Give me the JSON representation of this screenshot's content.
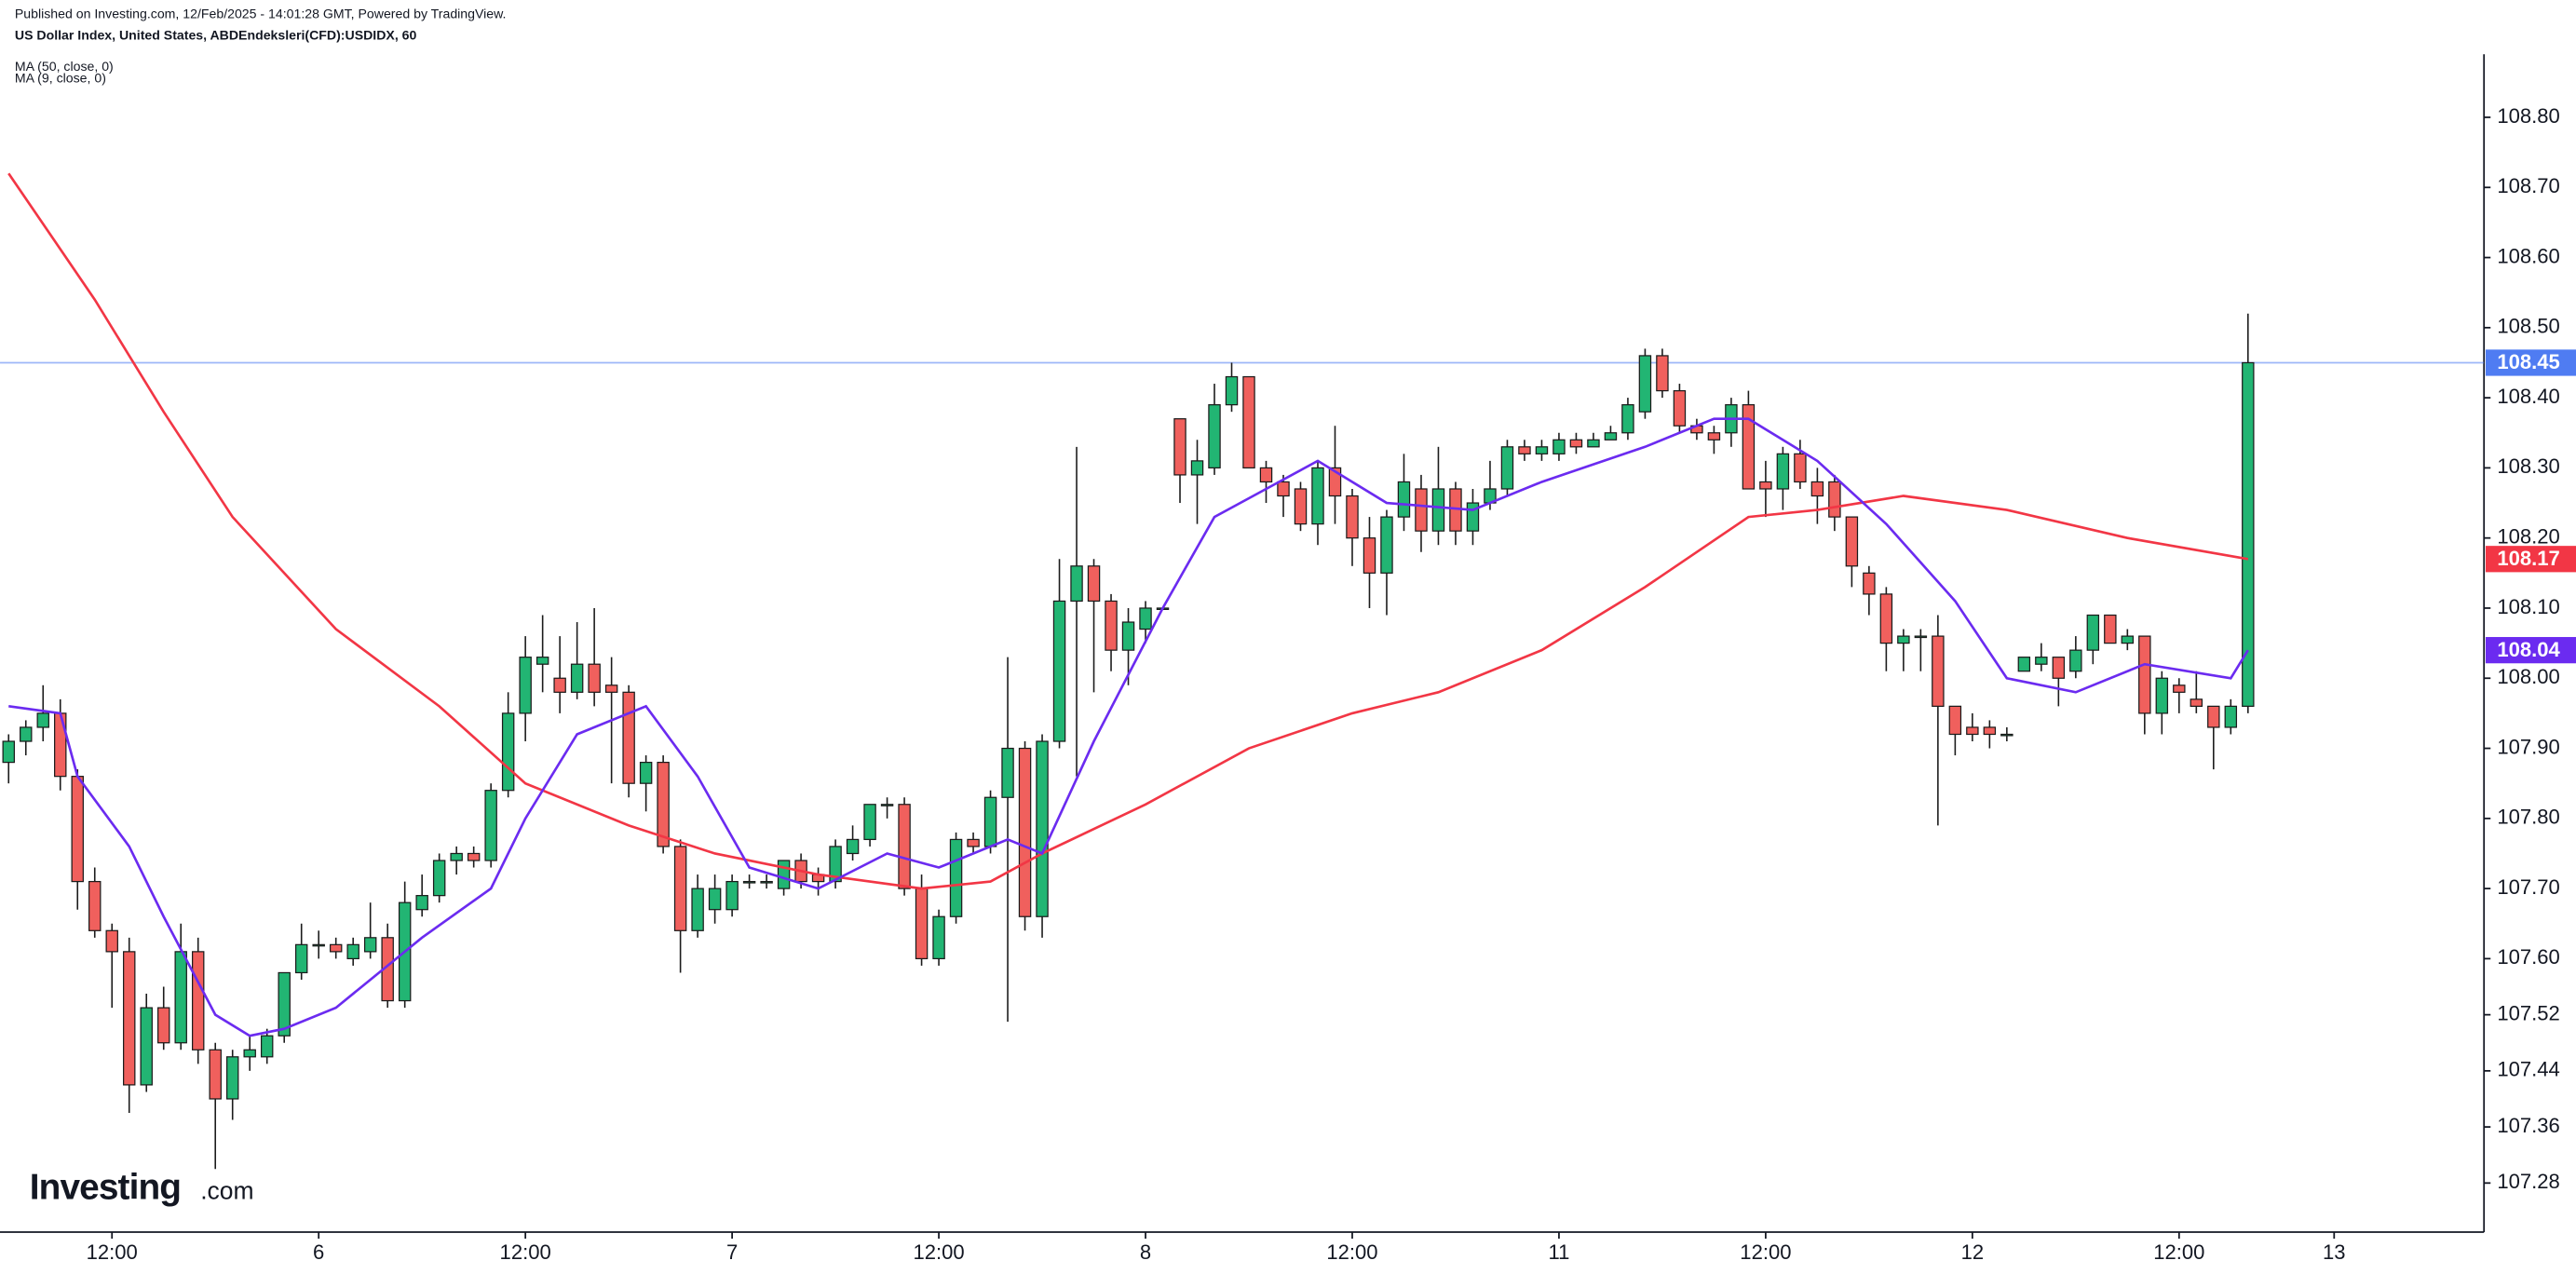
{
  "header": "Published on Investing.com, 12/Feb/2025 - 14:01:28 GMT, Powered by TradingView.",
  "logo": {
    "brand": "Investing",
    "suffix": ".com"
  },
  "chart_data": {
    "type": "candlestick",
    "title": "US Dollar Index, United States, ABDEndeksleri(CFD):USDIDX, 60",
    "up_color": "#22b573",
    "down_color": "#f0605d",
    "price_line_color": "#4f7cf2",
    "open": [
      107.88,
      107.91,
      107.93,
      107.95,
      107.86,
      107.71,
      107.64,
      107.61,
      107.42,
      107.53,
      107.48,
      107.61,
      107.47,
      107.4,
      107.46,
      107.46,
      107.49,
      107.58,
      107.62,
      107.62,
      107.6,
      107.61,
      107.63,
      107.54,
      107.67,
      107.69,
      107.74,
      107.75,
      107.74,
      107.84,
      107.95,
      108.02,
      108.0,
      107.98,
      108.02,
      107.99,
      107.98,
      107.85,
      107.88,
      107.76,
      107.64,
      107.67,
      107.67,
      107.71,
      107.71,
      107.7,
      107.74,
      107.72,
      107.71,
      107.75,
      107.77,
      107.82,
      107.82,
      107.7,
      107.6,
      107.66,
      107.77,
      107.76,
      107.83,
      107.9,
      107.66,
      107.91,
      108.11,
      108.16,
      108.11,
      108.04,
      108.07,
      108.1,
      108.37,
      108.29,
      108.3,
      108.39,
      108.43,
      108.3,
      108.28,
      108.27,
      108.22,
      108.3,
      108.26,
      108.2,
      108.15,
      108.23,
      108.27,
      108.21,
      108.27,
      108.21,
      108.25,
      108.27,
      108.33,
      108.32,
      108.32,
      108.34,
      108.33,
      108.34,
      108.35,
      108.38,
      108.46,
      108.41,
      108.36,
      108.35,
      108.35,
      108.39,
      108.28,
      108.27,
      108.32,
      108.28,
      108.28,
      108.23,
      108.15,
      108.12,
      108.05,
      108.06,
      108.06,
      107.96,
      107.93,
      107.93,
      107.92,
      108.01,
      108.02,
      108.03,
      108.01,
      108.04,
      108.09,
      108.05,
      108.06,
      107.95,
      107.99,
      107.97,
      107.96,
      107.93,
      107.96
    ],
    "high": [
      107.92,
      107.94,
      107.99,
      107.97,
      107.87,
      107.73,
      107.65,
      107.63,
      107.55,
      107.56,
      107.65,
      107.63,
      107.48,
      107.47,
      107.49,
      107.5,
      107.58,
      107.65,
      107.64,
      107.63,
      107.63,
      107.68,
      107.65,
      107.71,
      107.72,
      107.75,
      107.76,
      107.76,
      107.85,
      107.98,
      108.06,
      108.09,
      108.06,
      108.08,
      108.1,
      108.03,
      107.99,
      107.89,
      107.89,
      107.77,
      107.72,
      107.72,
      107.72,
      107.72,
      107.72,
      107.74,
      107.75,
      107.73,
      107.77,
      107.79,
      107.82,
      107.83,
      107.83,
      107.72,
      107.67,
      107.78,
      107.78,
      107.84,
      108.03,
      107.91,
      107.92,
      108.17,
      108.33,
      108.17,
      108.12,
      108.1,
      108.11,
      108.1,
      108.37,
      108.34,
      108.42,
      108.45,
      108.43,
      108.31,
      108.29,
      108.28,
      108.31,
      108.36,
      108.27,
      108.23,
      108.24,
      108.32,
      108.29,
      108.33,
      108.28,
      108.27,
      108.31,
      108.34,
      108.34,
      108.34,
      108.35,
      108.35,
      108.35,
      108.36,
      108.4,
      108.47,
      108.47,
      108.42,
      108.37,
      108.36,
      108.4,
      108.41,
      108.31,
      108.33,
      108.34,
      108.3,
      108.29,
      108.23,
      108.16,
      108.13,
      108.07,
      108.07,
      108.09,
      107.96,
      107.95,
      107.94,
      107.93,
      108.03,
      108.05,
      108.03,
      108.06,
      108.09,
      108.09,
      108.07,
      108.06,
      108.01,
      108.0,
      108.01,
      107.96,
      107.97,
      108.52
    ],
    "low": [
      107.85,
      107.89,
      107.91,
      107.84,
      107.67,
      107.63,
      107.53,
      107.38,
      107.41,
      107.47,
      107.47,
      107.45,
      107.3,
      107.37,
      107.44,
      107.45,
      107.48,
      107.57,
      107.6,
      107.6,
      107.59,
      107.6,
      107.53,
      107.53,
      107.66,
      107.68,
      107.72,
      107.73,
      107.73,
      107.83,
      107.91,
      107.98,
      107.95,
      107.97,
      107.96,
      107.85,
      107.83,
      107.81,
      107.75,
      107.58,
      107.63,
      107.65,
      107.66,
      107.7,
      107.7,
      107.69,
      107.7,
      107.69,
      107.7,
      107.74,
      107.76,
      107.8,
      107.69,
      107.59,
      107.59,
      107.65,
      107.75,
      107.75,
      107.51,
      107.64,
      107.63,
      107.9,
      107.86,
      107.98,
      108.01,
      107.99,
      108.05,
      108.1,
      108.25,
      108.22,
      108.29,
      108.38,
      108.3,
      108.25,
      108.23,
      108.21,
      108.19,
      108.22,
      108.16,
      108.1,
      108.09,
      108.21,
      108.18,
      108.19,
      108.19,
      108.19,
      108.24,
      108.26,
      108.31,
      108.31,
      108.31,
      108.32,
      108.33,
      108.34,
      108.34,
      108.37,
      108.4,
      108.35,
      108.34,
      108.32,
      108.33,
      108.27,
      108.23,
      108.24,
      108.27,
      108.22,
      108.21,
      108.13,
      108.09,
      108.01,
      108.01,
      108.01,
      107.79,
      107.89,
      107.91,
      107.9,
      107.91,
      108.01,
      108.01,
      107.96,
      108.0,
      108.02,
      108.05,
      108.04,
      107.92,
      107.92,
      107.95,
      107.95,
      107.87,
      107.92,
      107.95
    ],
    "close": [
      107.91,
      107.93,
      107.95,
      107.86,
      107.71,
      107.64,
      107.61,
      107.42,
      107.53,
      107.48,
      107.61,
      107.47,
      107.4,
      107.46,
      107.47,
      107.49,
      107.58,
      107.62,
      107.62,
      107.61,
      107.62,
      107.63,
      107.54,
      107.68,
      107.69,
      107.74,
      107.75,
      107.74,
      107.84,
      107.95,
      108.03,
      108.03,
      107.98,
      108.02,
      107.98,
      107.98,
      107.85,
      107.88,
      107.76,
      107.64,
      107.7,
      107.7,
      107.71,
      107.71,
      107.71,
      107.74,
      107.71,
      107.71,
      107.76,
      107.77,
      107.82,
      107.82,
      107.7,
      107.6,
      107.66,
      107.77,
      107.76,
      107.83,
      107.9,
      107.66,
      107.91,
      108.11,
      108.16,
      108.11,
      108.04,
      108.08,
      108.1,
      108.1,
      108.29,
      108.31,
      108.39,
      108.43,
      108.3,
      108.28,
      108.26,
      108.22,
      108.3,
      108.26,
      108.2,
      108.15,
      108.23,
      108.28,
      108.21,
      108.27,
      108.21,
      108.25,
      108.27,
      108.33,
      108.32,
      108.33,
      108.34,
      108.33,
      108.34,
      108.35,
      108.39,
      108.46,
      108.41,
      108.36,
      108.35,
      108.34,
      108.39,
      108.27,
      108.27,
      108.32,
      108.28,
      108.26,
      108.23,
      108.16,
      108.12,
      108.05,
      108.06,
      108.06,
      107.96,
      107.92,
      107.92,
      107.92,
      107.92,
      108.03,
      108.03,
      108.0,
      108.04,
      108.09,
      108.05,
      108.06,
      107.95,
      108.0,
      107.98,
      107.96,
      107.93,
      107.96,
      108.45
    ],
    "lines": [
      {
        "name": "MA (50, close, 0)",
        "color": "#f23645",
        "x": [
          0,
          5,
          9,
          13,
          19,
          25,
          30,
          36,
          41,
          47,
          53,
          57,
          60,
          66,
          72,
          78,
          83,
          89,
          95,
          101,
          105,
          110,
          116,
          123,
          130
        ],
        "values": [
          108.72,
          108.54,
          108.38,
          108.23,
          108.07,
          107.96,
          107.85,
          107.79,
          107.75,
          107.72,
          107.7,
          107.71,
          107.75,
          107.82,
          107.9,
          107.95,
          107.98,
          108.04,
          108.13,
          108.23,
          108.24,
          108.26,
          108.24,
          108.2,
          108.17
        ]
      },
      {
        "name": "MA (9, close, 0)",
        "color": "#6b2bf0",
        "x": [
          0,
          3,
          4,
          7,
          9,
          12,
          14,
          16,
          19,
          21,
          24,
          28,
          30,
          33,
          37,
          40,
          43,
          47,
          51,
          54,
          58,
          60,
          63,
          67,
          70,
          73,
          76,
          80,
          85,
          89,
          95,
          99,
          101,
          105,
          109,
          113,
          116,
          120,
          124,
          129,
          130
        ],
        "values": [
          107.96,
          107.95,
          107.86,
          107.76,
          107.66,
          107.52,
          107.49,
          107.5,
          107.53,
          107.57,
          107.63,
          107.7,
          107.8,
          107.92,
          107.96,
          107.86,
          107.73,
          107.7,
          107.75,
          107.73,
          107.77,
          107.75,
          107.91,
          108.1,
          108.23,
          108.27,
          108.31,
          108.25,
          108.24,
          108.28,
          108.33,
          108.37,
          108.37,
          108.31,
          108.22,
          108.11,
          108.0,
          107.98,
          108.02,
          108.0,
          108.04
        ]
      }
    ],
    "xlim": [
      -0.5,
      143.7
    ],
    "ylim": [
      107.21,
      108.89
    ],
    "xticks": [
      {
        "value": 6,
        "label": "12:00"
      },
      {
        "value": 18,
        "label": "6"
      },
      {
        "value": 30,
        "label": "12:00"
      },
      {
        "value": 42,
        "label": "7"
      },
      {
        "value": 54,
        "label": "12:00"
      },
      {
        "value": 66,
        "label": "8"
      },
      {
        "value": 78,
        "label": "12:00"
      },
      {
        "value": 90,
        "label": "11"
      },
      {
        "value": 102,
        "label": "12:00"
      },
      {
        "value": 114,
        "label": "12"
      },
      {
        "value": 126,
        "label": "12:00"
      },
      {
        "value": 135,
        "label": "13"
      }
    ],
    "yticks": [
      {
        "value": 107.28,
        "label": "107.28"
      },
      {
        "value": 107.36,
        "label": "107.36"
      },
      {
        "value": 107.44,
        "label": "107.44"
      },
      {
        "value": 107.52,
        "label": "107.52"
      },
      {
        "value": 107.6,
        "label": "107.60"
      },
      {
        "value": 107.7,
        "label": "107.70"
      },
      {
        "value": 107.8,
        "label": "107.80"
      },
      {
        "value": 107.9,
        "label": "107.90"
      },
      {
        "value": 108,
        "label": "108.00"
      },
      {
        "value": 108.1,
        "label": "108.10"
      },
      {
        "value": 108.2,
        "label": "108.20"
      },
      {
        "value": 108.3,
        "label": "108.30"
      },
      {
        "value": 108.4,
        "label": "108.40"
      },
      {
        "value": 108.5,
        "label": "108.50"
      },
      {
        "value": 108.6,
        "label": "108.60"
      },
      {
        "value": 108.7,
        "label": "108.70"
      },
      {
        "value": 108.8,
        "label": "108.80"
      }
    ]
  }
}
